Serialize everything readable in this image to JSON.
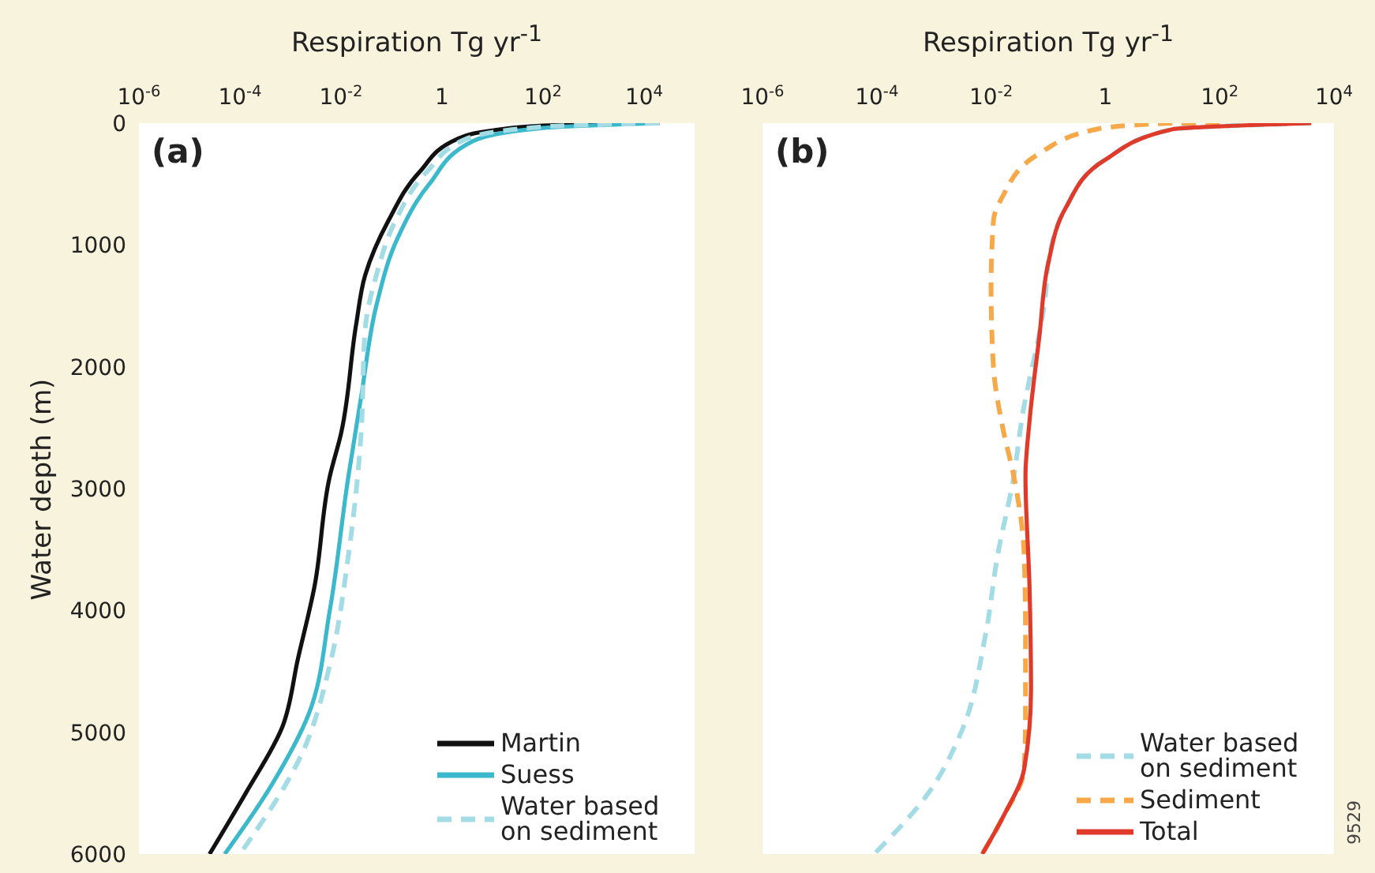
{
  "chart_data": [
    {
      "type": "line",
      "title": "(a)",
      "xlabel": "Respiration Tg yr$^{-1}$",
      "ylabel": "Water depth (m)",
      "xlim": [
        1e-06,
        100000
      ],
      "xticks": [
        {
          "value": 1e-06,
          "label": "10$^{-6}$"
        },
        {
          "value": 0.0001,
          "label": "10$^{-4}$"
        },
        {
          "value": 0.01,
          "label": "10$^{-2}$"
        },
        1,
        {
          "value": 100,
          "label": "10$^{2}$"
        },
        {
          "value": 10000,
          "label": "10$^{4}$"
        }
      ],
      "ylim": [
        6000,
        0
      ],
      "yticks": [
        0,
        1000,
        2000,
        3000,
        4000,
        5000,
        6000
      ],
      "log": "x",
      "legend": "bottom right",
      "series": [
        {
          "name": "Martin",
          "color": "#111111",
          "line_style": "solid",
          "x": [
            20000,
            100,
            10,
            2,
            0.36,
            0.087,
            0.03,
            0.02,
            0.01,
            0.006,
            0.003,
            0.0014,
            0.0007,
            0.00013,
            2.5e-05
          ],
          "values": [
            0,
            20,
            60,
            130,
            400,
            800,
            1250,
            1650,
            2550,
            2900,
            3800,
            4400,
            4950,
            5500,
            6000
          ]
        },
        {
          "name": "Suess",
          "color": "#3bb8cc",
          "line_style": "solid",
          "x": [
            20000,
            100,
            4,
            0.56,
            0.13,
            0.05,
            0.025,
            0.014,
            0.006,
            0.0023,
            0.0004,
            5e-05
          ],
          "values": [
            0,
            40,
            150,
            500,
            950,
            1500,
            2250,
            2900,
            4000,
            4850,
            5450,
            6000
          ]
        },
        {
          "name": "Water based on sediment",
          "color": "#a4dce6",
          "line_style": "dashed",
          "x": [
            20000,
            100,
            3,
            0.5,
            0.12,
            0.05,
            0.03,
            0.025,
            0.014,
            0.006,
            0.0018,
            0.0001
          ],
          "values": [
            0,
            30,
            130,
            400,
            800,
            1250,
            1700,
            2550,
            3550,
            4450,
            5150,
            6000
          ]
        }
      ]
    },
    {
      "type": "line",
      "title": "(b)",
      "xlabel": "Respiration Tg yr$^{-1}$",
      "xlim": [
        1e-06,
        10000
      ],
      "xticks": [
        {
          "value": 1e-06,
          "label": "10$^{-6}$"
        },
        {
          "value": 0.0001,
          "label": "10$^{-4}$"
        },
        {
          "value": 0.01,
          "label": "10$^{-2}$"
        },
        1,
        {
          "value": 100,
          "label": "10$^{2}$"
        },
        {
          "value": 10000,
          "label": "10$^{4}$"
        }
      ],
      "ylim": [
        6000,
        0
      ],
      "tick_labels": "x",
      "log": "x",
      "legend": "bottom right",
      "annotations": [
        "9529"
      ],
      "series": [
        {
          "name": "Water based on sediment",
          "color": "#a4dce6",
          "line_style": "dashed",
          "x": [
            4000,
            15,
            1,
            0.2,
            0.1,
            0.09,
            0.034,
            0.025,
            0.013,
            0.008,
            0.003,
            0.0008,
            9e-05
          ],
          "values": [
            0,
            50,
            300,
            700,
            1150,
            1400,
            2450,
            2900,
            3550,
            4200,
            5000,
            5500,
            6000
          ]
        },
        {
          "name": "Sediment",
          "color": "#f7a94a",
          "line_style": "dashed",
          "x": [
            100,
            15,
            0.7,
            0.07,
            0.016,
            0.011,
            0.01,
            0.011,
            0.016,
            0.025,
            0.038,
            0.04,
            0.04,
            0.038,
            0.016,
            0.007
          ],
          "values": [
            0,
            0,
            50,
            250,
            600,
            800,
            1350,
            2000,
            2500,
            2900,
            3550,
            4200,
            4850,
            5300,
            5700,
            6000
          ]
        },
        {
          "name": "Total",
          "color": "#e03a2a",
          "line_style": "solid",
          "x": [
            4000,
            15,
            1,
            0.2,
            0.1,
            0.07,
            0.047,
            0.04,
            0.047,
            0.05,
            0.038,
            0.016,
            0.007
          ],
          "values": [
            0,
            50,
            300,
            700,
            1150,
            1750,
            2450,
            2900,
            3800,
            4650,
            5300,
            5700,
            6000
          ]
        }
      ]
    }
  ]
}
